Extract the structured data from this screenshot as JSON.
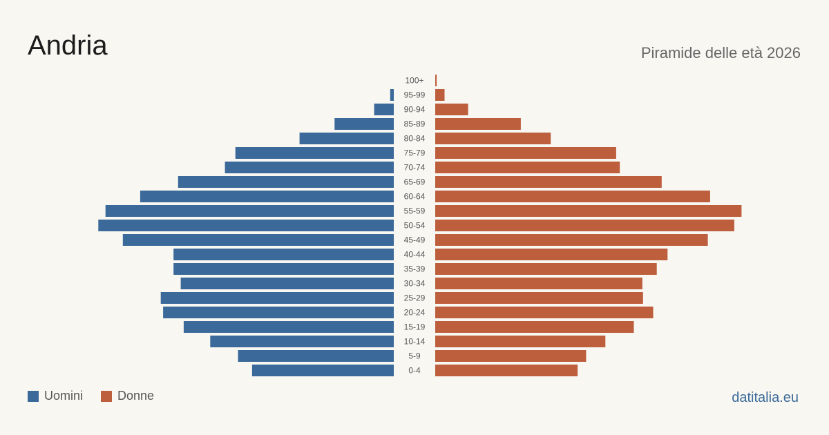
{
  "title": "Andria",
  "subtitle": "Piramide delle età 2026",
  "legend": {
    "men": "Uomini",
    "women": "Donne"
  },
  "source": "datitalia.eu",
  "colors": {
    "men": "#3b6a9a",
    "women": "#bd5e3c",
    "background": "#f9f7f2"
  },
  "chart_data": {
    "type": "bar",
    "orientation": "horizontal-population-pyramid",
    "title": "",
    "categories": [
      "100+",
      "95-99",
      "90-94",
      "85-89",
      "80-84",
      "75-79",
      "70-74",
      "65-69",
      "60-64",
      "55-59",
      "50-54",
      "45-49",
      "40-44",
      "35-39",
      "30-34",
      "25-29",
      "20-24",
      "15-19",
      "10-14",
      "5-9",
      "0-4"
    ],
    "series": [
      {
        "name": "Uomini",
        "values": [
          0,
          22,
          120,
          362,
          576,
          968,
          1032,
          1318,
          1550,
          1762,
          1806,
          1656,
          1346,
          1346,
          1302,
          1424,
          1410,
          1284,
          1122,
          952,
          866
        ]
      },
      {
        "name": "Donne",
        "values": [
          9,
          57,
          201,
          523,
          706,
          1106,
          1128,
          1384,
          1680,
          1872,
          1828,
          1666,
          1420,
          1354,
          1266,
          1270,
          1332,
          1214,
          1040,
          922,
          870
        ]
      }
    ],
    "xlim": [
      0,
      1900
    ],
    "grid": false,
    "legend_position": "bottom-left"
  }
}
